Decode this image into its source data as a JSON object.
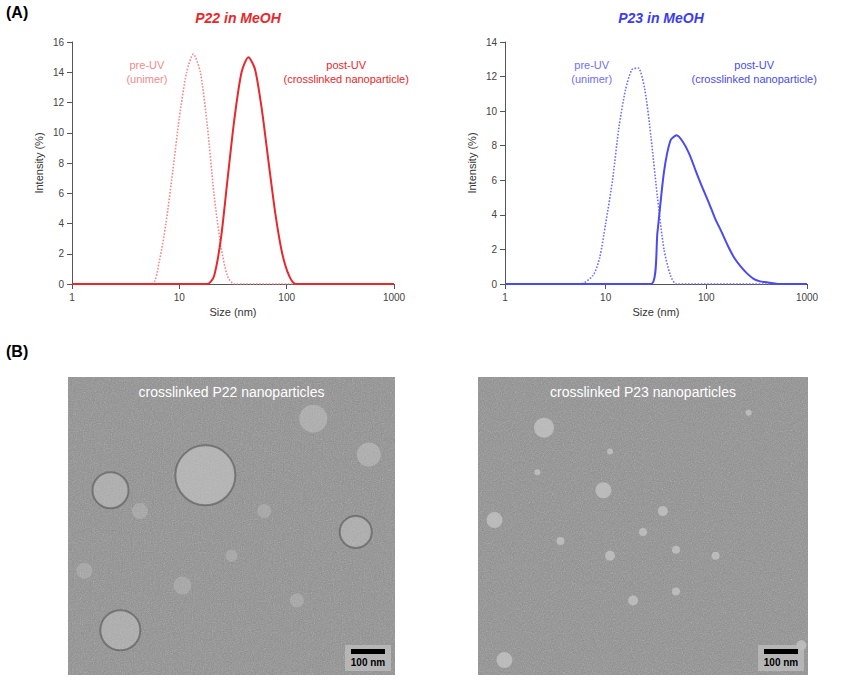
{
  "panel_labels": [
    "(A)",
    "(B)"
  ],
  "chart_data": [
    {
      "type": "line",
      "title": "P22 in MeOH",
      "color": "#e8282b",
      "x_label": "Size (nm)",
      "y_label": "Intensity (%)",
      "log": "x",
      "xlim": [
        1,
        1000
      ],
      "xticks": [
        1,
        10,
        100,
        1000
      ],
      "ylim": [
        0,
        16
      ],
      "yticks": [
        0,
        2,
        4,
        6,
        8,
        10,
        12,
        14,
        16
      ],
      "grid": false,
      "series": [
        {
          "annotation": [
            "pre-UV",
            "(unimer)"
          ],
          "color": "#f08a8c",
          "line_style": "dotted",
          "marker": "none",
          "x": [
            1,
            5.5,
            6.5,
            7.5,
            8.7,
            10,
            11.7,
            13.5,
            15.7,
            18.2,
            21,
            24.4,
            28.2,
            32.7,
            1000
          ],
          "values": [
            0,
            0,
            1.5,
            4,
            7.5,
            11,
            14,
            15.2,
            14,
            10.5,
            6,
            2.5,
            0.5,
            0,
            0
          ]
        },
        {
          "annotation": [
            "post-UV",
            "(crosslinked nanoparticle)"
          ],
          "color": "#e8282b",
          "line_style": "solid",
          "marker": "none",
          "x": [
            1,
            18.2,
            21,
            24.4,
            28.2,
            32.7,
            38,
            44,
            50.7,
            58.8,
            68,
            79,
            91,
            106,
            122,
            1000
          ],
          "values": [
            0,
            0,
            0.5,
            3,
            7,
            11,
            14,
            15,
            14.2,
            11.5,
            8,
            4.5,
            2,
            0.5,
            0,
            0
          ]
        }
      ]
    },
    {
      "type": "line",
      "title": "P23 in MeOH",
      "color": "#3b3bf0",
      "x_label": "Size (nm)",
      "y_label": "Intensity (%)",
      "log": "x",
      "xlim": [
        1,
        1000
      ],
      "xticks": [
        1,
        10,
        100,
        1000
      ],
      "ylim": [
        0,
        14
      ],
      "yticks": [
        0,
        2,
        4,
        6,
        8,
        10,
        12,
        14
      ],
      "grid": false,
      "series": [
        {
          "annotation": [
            "pre-UV",
            "(unimer)"
          ],
          "color": "#6f6ff5",
          "line_style": "dotted",
          "marker": "none",
          "x": [
            1,
            5.6,
            7.5,
            8.7,
            10,
            11.7,
            13.5,
            15.7,
            18.2,
            21,
            24.4,
            28.2,
            32.7,
            38,
            44,
            50.7,
            1000
          ],
          "values": [
            0,
            0,
            0.5,
            1.5,
            3.5,
            6,
            9,
            11.2,
            12.4,
            12.5,
            11.3,
            8.5,
            5,
            2,
            0.5,
            0,
            0
          ]
        },
        {
          "annotation": [
            "post-UV",
            "(crosslinked nanoparticle)"
          ],
          "color": "#4a4aef",
          "line_style": "solid",
          "marker": "none",
          "x": [
            1,
            28.2,
            32.7,
            38,
            44,
            50.7,
            58.8,
            68,
            79,
            91,
            106,
            122,
            142,
            164,
            190,
            220,
            255,
            295,
            342,
            396,
            459,
            531,
            1000
          ],
          "values": [
            0,
            0,
            3,
            6.5,
            8.3,
            8.6,
            8.2,
            7.5,
            6.5,
            5.6,
            4.7,
            3.8,
            3,
            2.2,
            1.5,
            1,
            0.6,
            0.3,
            0.15,
            0.1,
            0.05,
            0,
            0
          ]
        }
      ]
    }
  ],
  "images": [
    {
      "title": "crosslinked P22 nanoparticles",
      "scale_bar": "100 nm"
    },
    {
      "title": "crosslinked P23 nanoparticles",
      "scale_bar": "100 nm"
    }
  ]
}
